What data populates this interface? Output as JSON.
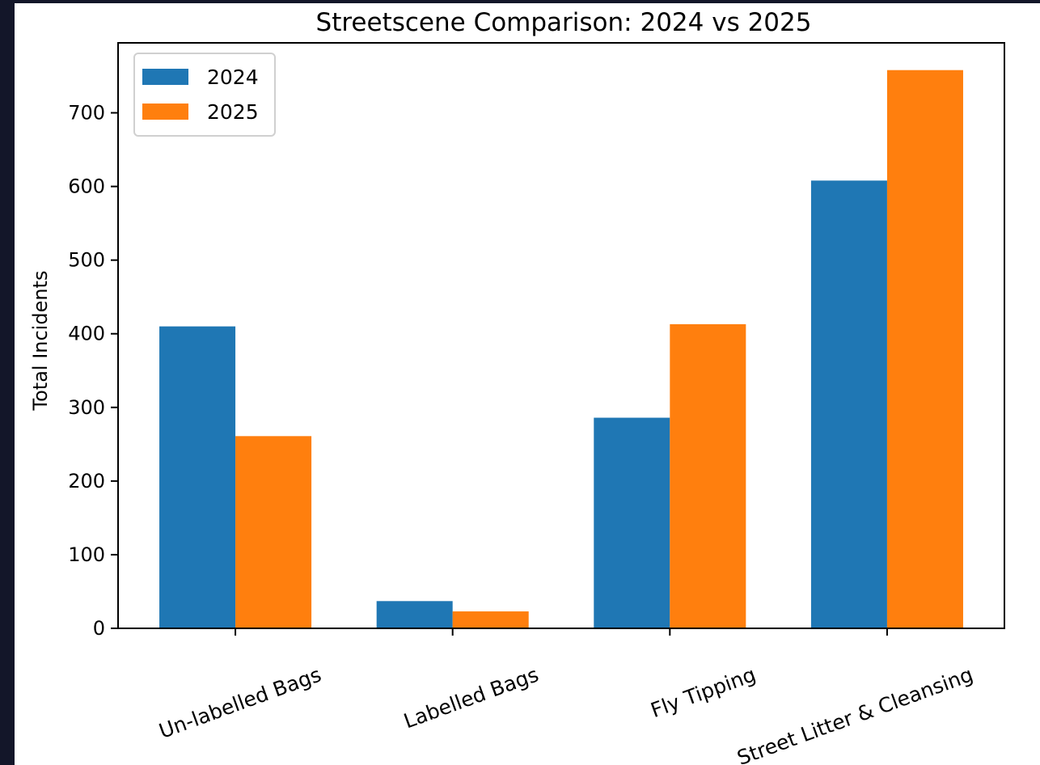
{
  "chart_data": {
    "type": "bar",
    "title": "Streetscene Comparison: 2024 vs 2025",
    "xlabel": "",
    "ylabel": "Total Incidents",
    "categories": [
      "Un-labelled Bags",
      "Labelled Bags",
      "Fly Tipping",
      "Street Litter & Cleansing"
    ],
    "series": [
      {
        "name": "2024",
        "color": "#1f77b4",
        "values": [
          410,
          37,
          286,
          608
        ]
      },
      {
        "name": "2025",
        "color": "#ff7f0e",
        "values": [
          261,
          23,
          413,
          758
        ]
      }
    ],
    "ylim": [
      0,
      795
    ],
    "yticks": [
      "0",
      "100",
      "200",
      "300",
      "400",
      "500",
      "600",
      "700"
    ],
    "grid": false,
    "legend_position": "top-left"
  }
}
